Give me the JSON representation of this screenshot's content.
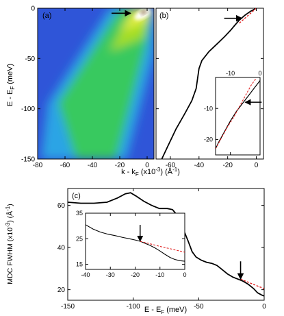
{
  "chart_data": [
    {
      "panel": "(a)",
      "type": "heatmap",
      "xlabel": "k - k",
      "xlabel_sub": "F",
      "xlabel_unit": " (x10",
      "xlabel_unit_sup": "-3",
      "xlabel_unit_end": ") (Å",
      "xlabel_unit_sup2": "-1",
      "xlabel_unit_close": ")",
      "ylabel": "E - E",
      "ylabel_sub": "F",
      "ylabel_unit": " (meV)",
      "xlim": [
        -80,
        5
      ],
      "ylim": [
        -150,
        0
      ],
      "xticks": [
        -80,
        -60,
        -40,
        -20,
        0
      ],
      "yticks": [
        0,
        -50,
        -100,
        -150
      ],
      "dispersion_ridge": [
        [
          2,
          0
        ],
        [
          -8,
          -12
        ],
        [
          -15,
          -22
        ],
        [
          -25,
          -45
        ],
        [
          -35,
          -75
        ],
        [
          -42,
          -100
        ],
        [
          -50,
          -125
        ],
        [
          -58,
          -150
        ]
      ],
      "arrow_at": [
        -12,
        -5
      ],
      "colormap": [
        "#2a4fd6",
        "#22b0e8",
        "#30d070",
        "#a8e020",
        "#f0f060",
        "#ffffff",
        "#8a6a40"
      ]
    },
    {
      "panel": "(b)",
      "type": "line",
      "xlim": [
        -70,
        5
      ],
      "ylim": [
        -150,
        0
      ],
      "series": [
        {
          "style": "solid",
          "color": "#000000",
          "x": [
            0,
            -4,
            -8,
            -12,
            -15,
            -18,
            -22,
            -27,
            -33,
            -38,
            -40,
            -41,
            -42,
            -45,
            -50,
            -56,
            -62,
            -66
          ],
          "y": [
            0,
            -3,
            -7,
            -12,
            -17,
            -22,
            -28,
            -35,
            -43,
            -52,
            -60,
            -70,
            -80,
            -92,
            -105,
            -120,
            -138,
            -150
          ]
        },
        {
          "style": "dashed",
          "color": "#e02020",
          "x": [
            0,
            -4,
            -8,
            -12
          ],
          "y": [
            0,
            -5,
            -10,
            -15
          ]
        }
      ],
      "arrow_at": [
        -10,
        -10
      ],
      "inset": {
        "xlim": [
          -15,
          0
        ],
        "ylim": [
          -25,
          0
        ],
        "xticks": [
          -10,
          0
        ],
        "yticks": [
          -10,
          -20
        ],
        "series": [
          {
            "style": "solid",
            "color": "#000000",
            "x": [
              0,
              -2,
              -4,
              -6,
              -8,
              -10,
              -12,
              -14,
              -15
            ],
            "y": [
              -1,
              -3.5,
              -6,
              -8.5,
              -11,
              -14,
              -17.5,
              -21,
              -23
            ]
          },
          {
            "style": "dashed",
            "color": "#e02020",
            "x": [
              -1.5,
              -3,
              -5,
              -7,
              -9,
              -11,
              -13,
              -15
            ],
            "y": [
              -0.5,
              -2.5,
              -6,
              -9.5,
              -13,
              -16,
              -19.5,
              -23
            ]
          }
        ],
        "arrow_at": [
          -5,
          -8
        ]
      }
    },
    {
      "panel": "(c)",
      "type": "line",
      "xlabel": "E - E",
      "xlabel_sub": "F",
      "xlabel_unit": " (meV)",
      "ylabel": "MDC FWHM (x10",
      "ylabel_sup": "-3",
      "ylabel_mid": ") (Å",
      "ylabel_sup2": "-1",
      "ylabel_end": ")",
      "xlim": [
        -150,
        0
      ],
      "ylim": [
        15,
        68
      ],
      "xticks": [
        -150,
        -100,
        -50,
        0
      ],
      "yticks": [
        20,
        40,
        60
      ],
      "series": [
        {
          "style": "solid",
          "color": "#000000",
          "x": [
            -150,
            -140,
            -130,
            -120,
            -112,
            -106,
            -102,
            -98,
            -92,
            -86,
            -80,
            -74,
            -70,
            -66,
            -62,
            -58,
            -55,
            -52,
            -48,
            -44,
            -40,
            -36,
            -32,
            -28,
            -24,
            -20,
            -16,
            -12,
            -8,
            -5,
            -2,
            0
          ],
          "y": [
            61.5,
            61,
            61,
            61.5,
            63.5,
            65.5,
            66,
            64.5,
            62,
            60,
            58.5,
            58.5,
            58,
            55,
            49,
            43,
            38,
            35.5,
            34,
            33,
            32.5,
            31.5,
            29.5,
            27.5,
            26,
            25,
            24,
            22.5,
            20.5,
            18.5,
            17.5,
            17
          ]
        },
        {
          "style": "dashed",
          "color": "#e02020",
          "x": [
            -18,
            -12,
            -6,
            0
          ],
          "y": [
            25,
            23.5,
            22,
            20.5
          ]
        }
      ],
      "arrow_at": [
        -18,
        25
      ],
      "inset": {
        "xlim": [
          -40,
          0
        ],
        "ylim": [
          13,
          35
        ],
        "xticks": [
          -40,
          -30,
          -20,
          -10,
          0
        ],
        "yticks": [
          15,
          25,
          35
        ],
        "series": [
          {
            "style": "solid",
            "color": "#000000",
            "x": [
              -40,
              -37,
              -34,
              -31,
              -28,
              -25,
              -22,
              -20,
              -18,
              -16,
              -14,
              -12,
              -10,
              -8,
              -6,
              -4,
              -2,
              0
            ],
            "y": [
              30.5,
              28.8,
              27.6,
              26.8,
              26.2,
              25.5,
              24.9,
              24.5,
              24,
              23.2,
              22.4,
              21.4,
              20.2,
              18.9,
              17.7,
              16.9,
              16.4,
              16.2
            ]
          },
          {
            "style": "dashed",
            "color": "#e02020",
            "x": [
              -18,
              -14,
              -10,
              -6,
              -2,
              0
            ],
            "y": [
              24,
              23,
              22,
              21.1,
              20.2,
              19.7
            ]
          }
        ],
        "arrow_at": [
          -18,
          24
        ]
      }
    }
  ]
}
